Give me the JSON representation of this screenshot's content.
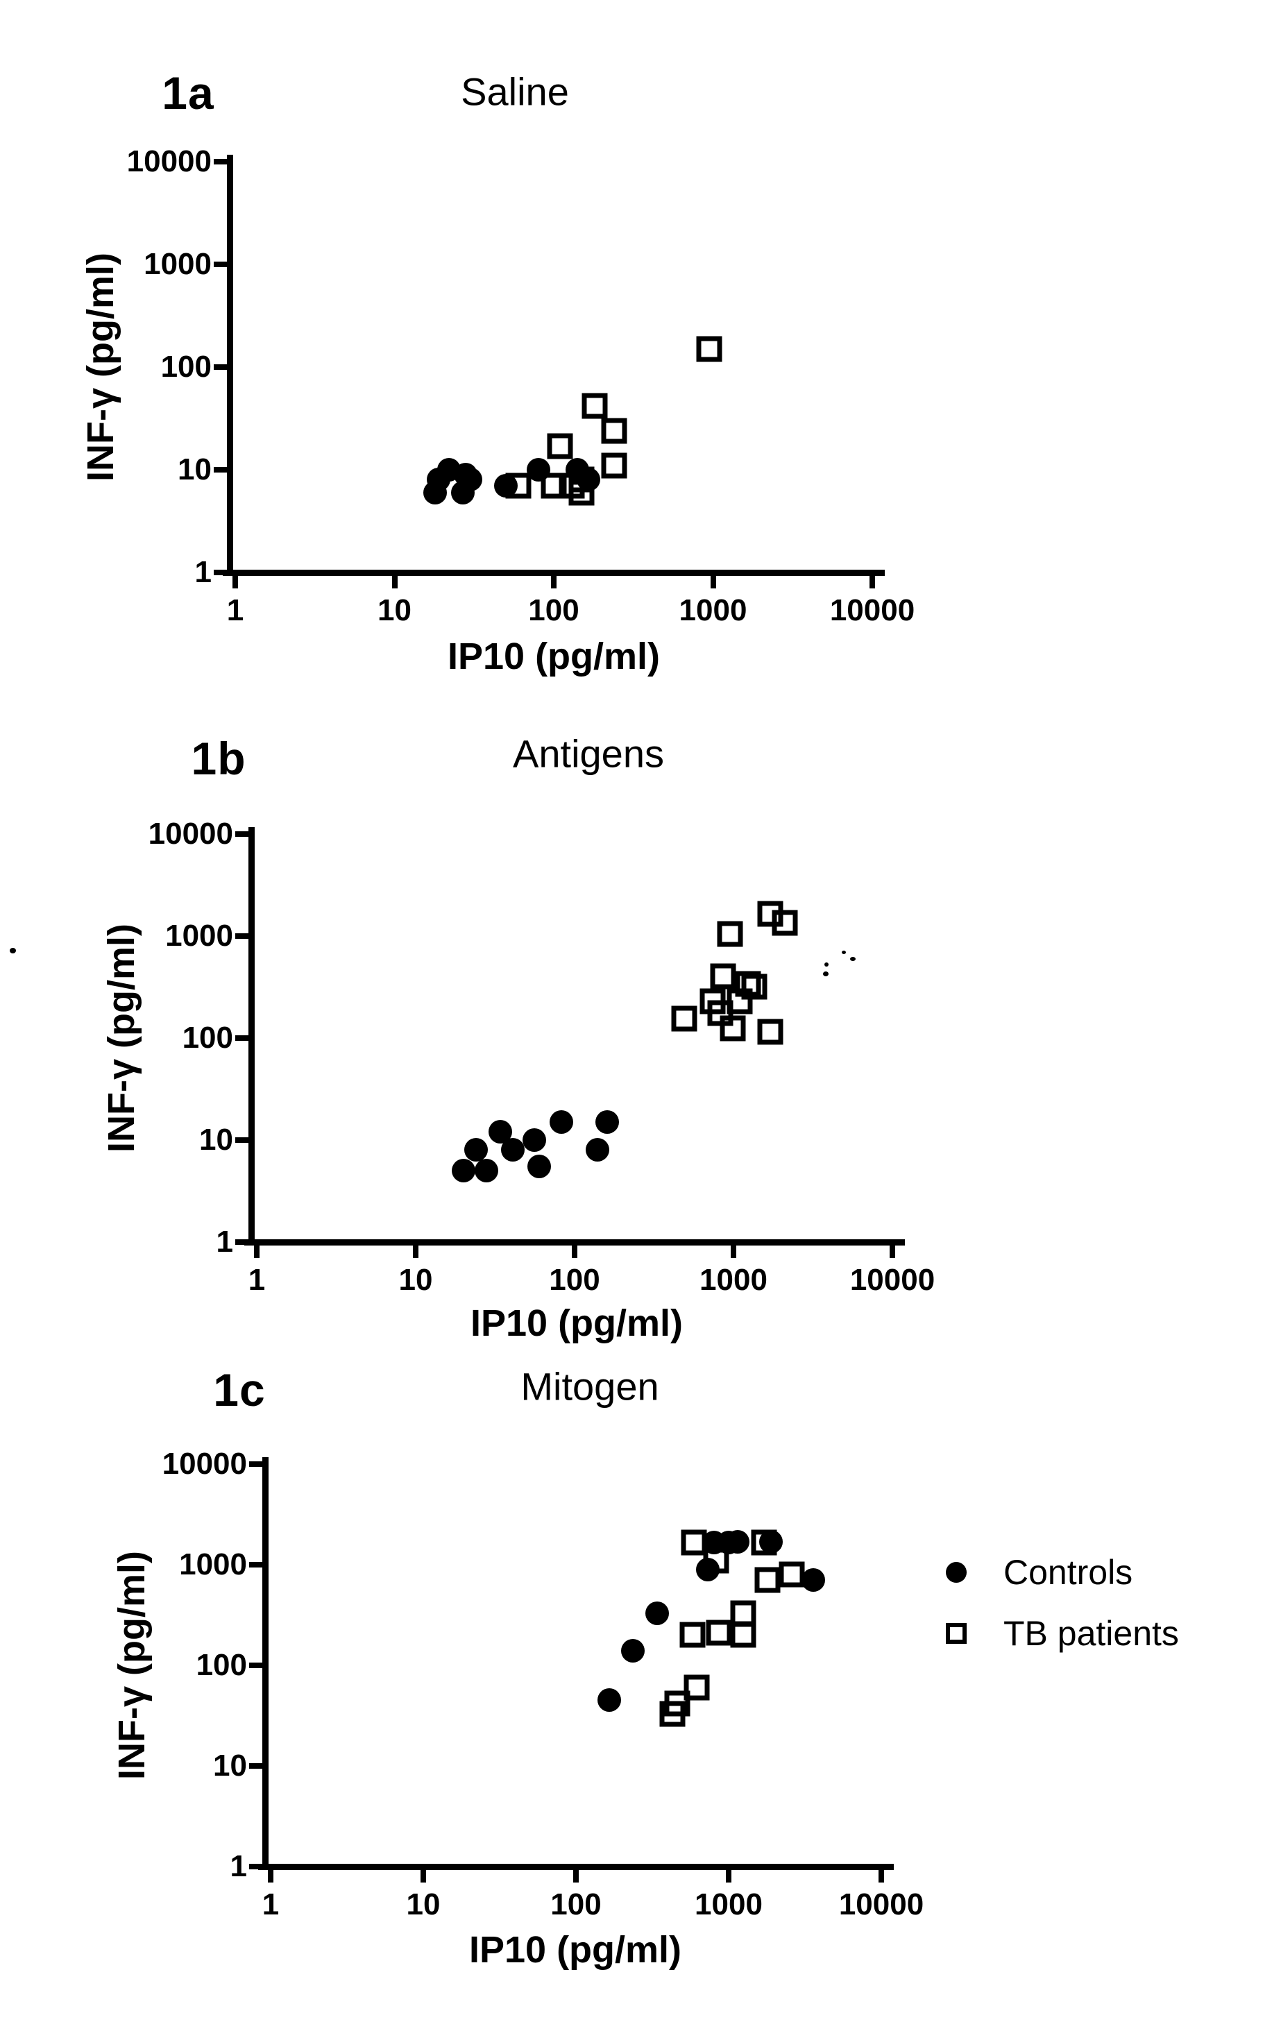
{
  "figure": {
    "background": "#ffffff",
    "ink_color": "#000000",
    "legend": {
      "items": [
        {
          "label": "Controls",
          "marker": "filled-circle"
        },
        {
          "label": "TB patients",
          "marker": "open-square"
        }
      ]
    }
  },
  "chart_data": [
    {
      "id": "1a",
      "panel_label": "1a",
      "title": "Saline",
      "type": "scatter",
      "xlabel": "IP10 (pg/ml)",
      "ylabel": "INF-γ (pg/ml)",
      "x_scale": "log",
      "y_scale": "log",
      "xlim": [
        1,
        10000
      ],
      "ylim": [
        1,
        10000
      ],
      "x_ticks": [
        1,
        10,
        100,
        1000,
        10000
      ],
      "y_ticks": [
        1,
        10,
        100,
        1000,
        10000
      ],
      "grid": false,
      "series": [
        {
          "name": "Controls",
          "marker": "filled-circle",
          "points": [
            [
              18,
              6
            ],
            [
              19,
              8
            ],
            [
              22,
              10
            ],
            [
              27,
              6
            ],
            [
              28,
              9
            ],
            [
              30,
              8
            ],
            [
              50,
              7
            ],
            [
              80,
              10
            ],
            [
              140,
              10
            ],
            [
              165,
              8
            ]
          ]
        },
        {
          "name": "TB patients",
          "marker": "open-square",
          "points": [
            [
              60,
              7
            ],
            [
              100,
              7
            ],
            [
              110,
              17
            ],
            [
              130,
              7
            ],
            [
              150,
              8
            ],
            [
              150,
              6
            ],
            [
              180,
              42
            ],
            [
              240,
              24
            ],
            [
              240,
              11
            ],
            [
              950,
              150
            ]
          ]
        }
      ]
    },
    {
      "id": "1b",
      "panel_label": "1b",
      "title": "Antigens",
      "type": "scatter",
      "xlabel": "IP10 (pg/ml)",
      "ylabel": "INF-γ (pg/ml)",
      "x_scale": "log",
      "y_scale": "log",
      "xlim": [
        1,
        10000
      ],
      "ylim": [
        1,
        10000
      ],
      "x_ticks": [
        1,
        10,
        100,
        1000,
        10000
      ],
      "y_ticks": [
        1,
        10,
        100,
        1000,
        10000
      ],
      "grid": false,
      "series": [
        {
          "name": "Controls",
          "marker": "filled-circle",
          "points": [
            [
              20,
              5
            ],
            [
              24,
              8
            ],
            [
              28,
              5
            ],
            [
              34,
              12
            ],
            [
              41,
              8
            ],
            [
              56,
              10
            ],
            [
              60,
              5.5
            ],
            [
              83,
              15
            ],
            [
              140,
              8
            ],
            [
              160,
              15
            ]
          ]
        },
        {
          "name": "TB patients",
          "marker": "open-square",
          "points": [
            [
              490,
              155
            ],
            [
              740,
              230
            ],
            [
              830,
              175
            ],
            [
              860,
              400
            ],
            [
              950,
              1050
            ],
            [
              990,
              125
            ],
            [
              1100,
              230
            ],
            [
              1230,
              340
            ],
            [
              1350,
              320
            ],
            [
              1700,
              115
            ],
            [
              1700,
              1650
            ],
            [
              2100,
              1350
            ]
          ]
        }
      ]
    },
    {
      "id": "1c",
      "panel_label": "1c",
      "title": "Mitogen",
      "type": "scatter",
      "xlabel": "IP10 (pg/ml)",
      "ylabel": "INF-γ (pg/ml)",
      "x_scale": "log",
      "y_scale": "log",
      "xlim": [
        1,
        10000
      ],
      "ylim": [
        1,
        10000
      ],
      "x_ticks": [
        1,
        10,
        100,
        1000,
        10000
      ],
      "y_ticks": [
        1,
        10,
        100,
        1000,
        10000
      ],
      "grid": false,
      "series": [
        {
          "name": "Controls",
          "marker": "filled-circle",
          "points": [
            [
              165,
              45
            ],
            [
              235,
              140
            ],
            [
              340,
              330
            ],
            [
              730,
              900
            ],
            [
              800,
              1650
            ],
            [
              1000,
              1650
            ],
            [
              1150,
              1700
            ],
            [
              1900,
              1700
            ],
            [
              3600,
              700
            ]
          ]
        },
        {
          "name": "TB patients",
          "marker": "open-square",
          "points": [
            [
              430,
              33
            ],
            [
              460,
              42
            ],
            [
              620,
              60
            ],
            [
              580,
              200
            ],
            [
              860,
              210
            ],
            [
              1250,
              200
            ],
            [
              1250,
              330
            ],
            [
              1800,
              700
            ],
            [
              2600,
              800
            ],
            [
              830,
              1100
            ],
            [
              590,
              1650
            ],
            [
              1700,
              1650
            ]
          ]
        }
      ]
    }
  ]
}
